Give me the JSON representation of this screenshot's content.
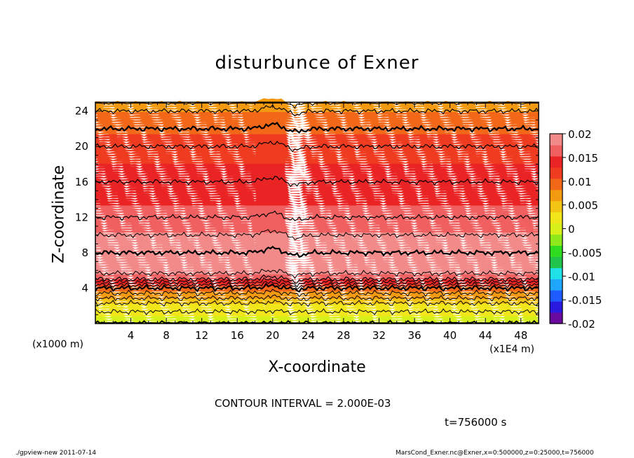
{
  "chart_data": {
    "type": "heatmap",
    "title": "disturbunce of Exner",
    "xlabel": "X-coordinate",
    "ylabel": "Z-coordinate",
    "x_unit_note": "(x1000 m)",
    "x_scale_note": "(x1E4 m)",
    "xlim": [
      0,
      50
    ],
    "ylim": [
      0,
      25
    ],
    "x_ticks": [
      "4",
      "8",
      "12",
      "16",
      "20",
      "24",
      "28",
      "32",
      "36",
      "40",
      "44",
      "48"
    ],
    "y_ticks": [
      "4",
      "8",
      "12",
      "16",
      "20",
      "24"
    ],
    "colorbar": {
      "ticks": [
        "0.02",
        "0.015",
        "0.01",
        "0.005",
        "0",
        "-0.005",
        "-0.01",
        "-0.015",
        "-0.02"
      ],
      "range": [
        -0.02,
        0.02
      ],
      "colors": [
        "#6a0a9e",
        "#2a1ae0",
        "#1f5cff",
        "#1fa7ff",
        "#20e0e8",
        "#20c44a",
        "#30dc20",
        "#8ee81a",
        "#d8f01a",
        "#f0e61a",
        "#f4c414",
        "#f49a10",
        "#f26818",
        "#ef3c20",
        "#ea2424",
        "#f06060",
        "#f38a8a"
      ]
    },
    "profile": [
      {
        "z": 0,
        "value": 0.0
      },
      {
        "z": 2,
        "value": 0.003
      },
      {
        "z": 4,
        "value": 0.01
      },
      {
        "z": 5,
        "value": 0.016
      },
      {
        "z": 6,
        "value": 0.019
      },
      {
        "z": 8,
        "value": 0.02
      },
      {
        "z": 10,
        "value": 0.018
      },
      {
        "z": 12,
        "value": 0.016
      },
      {
        "z": 16,
        "value": 0.014
      },
      {
        "z": 20,
        "value": 0.012
      },
      {
        "z": 22,
        "value": 0.01
      },
      {
        "z": 24,
        "value": 0.008
      },
      {
        "z": 25,
        "value": 0.006
      }
    ],
    "contour_interval": "CONTOUR INTERVAL = 2.000E-03",
    "time": "t=756000 s"
  },
  "footer": {
    "left": "./gpview-new   2011-07-14",
    "right": "MarsCond_Exner.nc@Exner,x=0:500000,z=0:25000,t=756000"
  }
}
